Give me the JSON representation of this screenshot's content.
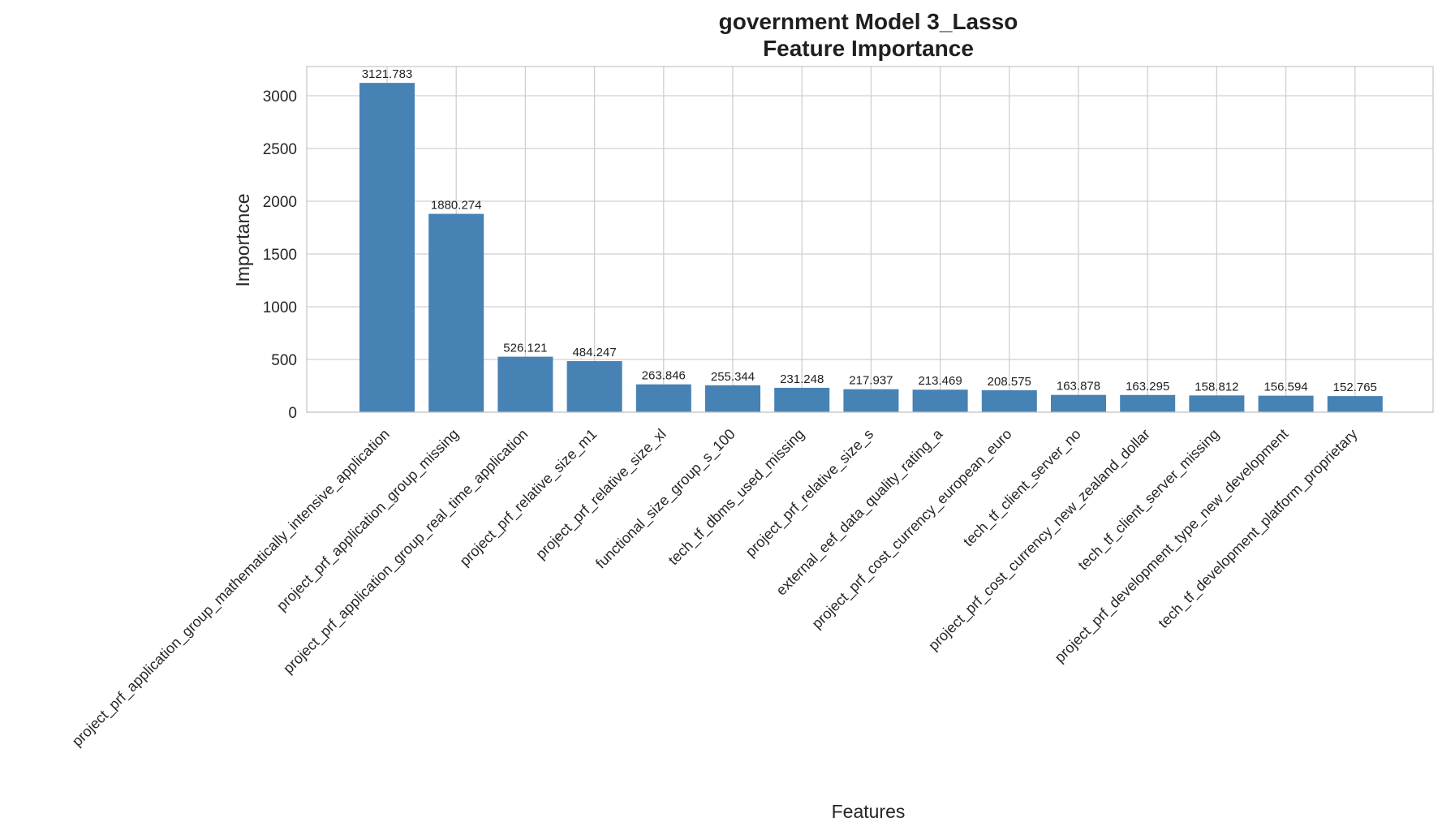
{
  "chart_data": {
    "type": "bar",
    "title_line1": "government Model 3_Lasso",
    "title_line2": "Feature Importance",
    "xlabel": "Features",
    "ylabel": "Importance",
    "ylim": [
      0,
      3276.87
    ],
    "yticks": [
      0,
      500,
      1000,
      1500,
      2000,
      2500,
      3000
    ],
    "grid": true,
    "bar_color": "#4682b4",
    "categories": [
      "project_prf_application_group_mathematically_intensive_application",
      "project_prf_application_group_missing",
      "project_prf_application_group_real_time_application",
      "project_prf_relative_size_m1",
      "project_prf_relative_size_xl",
      "functional_size_group_s_100",
      "tech_tf_dbms_used_missing",
      "project_prf_relative_size_s",
      "external_eef_data_quality_rating_a",
      "project_prf_cost_currency_european_euro",
      "tech_tf_client_server_no",
      "project_prf_cost_currency_new_zealand_dollar",
      "tech_tf_client_server_missing",
      "project_prf_development_type_new_development",
      "tech_tf_development_platform_proprietary"
    ],
    "values": [
      3121.783,
      1880.274,
      526.121,
      484.247,
      263.846,
      255.344,
      231.248,
      217.937,
      213.469,
      208.575,
      163.878,
      163.295,
      158.812,
      156.594,
      152.765
    ],
    "value_labels": [
      "3121.783",
      "1880.274",
      "526.121",
      "484.247",
      "263.846",
      "255.344",
      "231.248",
      "217.937",
      "213.469",
      "208.575",
      "163.878",
      "163.295",
      "158.812",
      "156.594",
      "152.765"
    ]
  }
}
